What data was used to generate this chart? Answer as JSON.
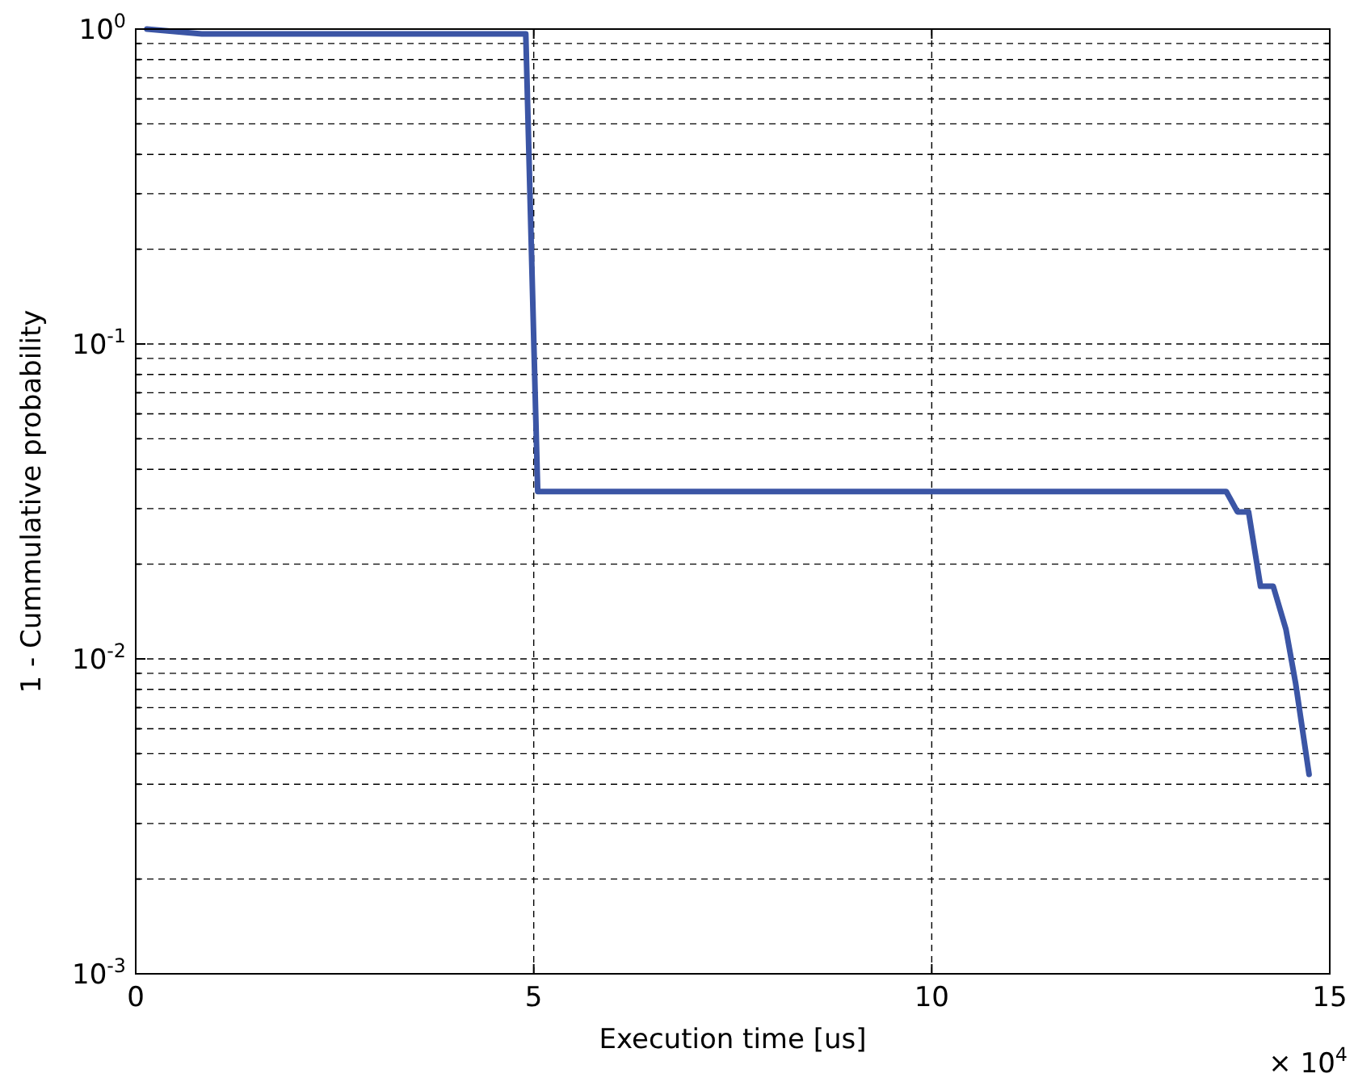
{
  "chart_data": {
    "type": "line",
    "xlabel": "Execution time [us]",
    "ylabel": "1 - Cummulative probability",
    "annotations": [
      "× 10$^{4}$"
    ],
    "x": [
      0.14,
      0.83,
      4.9,
      5.05,
      13.7,
      13.84,
      13.98,
      14.13,
      14.29,
      14.45,
      14.57,
      14.74
    ],
    "series": [
      {
        "color": "#3b55a5",
        "values": [
          1.0,
          0.965,
          0.965,
          0.034,
          0.034,
          0.0293,
          0.0293,
          0.017,
          0.017,
          0.0124,
          0.0084,
          0.0043
        ]
      }
    ],
    "log": "y",
    "grid": true,
    "line_style": "solid",
    "marker": "none",
    "xlim": [
      0,
      15
    ],
    "xticks": [
      0,
      5,
      10,
      15
    ],
    "ylim": [
      0.001,
      1
    ],
    "yticks": [
      {
        "value": 0.001,
        "label": "10$^{-3}$"
      },
      {
        "value": 0.002,
        "label": null
      },
      {
        "value": 0.003,
        "label": null
      },
      {
        "value": 0.004,
        "label": null
      },
      {
        "value": 0.005,
        "label": null
      },
      {
        "value": 0.006,
        "label": null
      },
      {
        "value": 0.007,
        "label": null
      },
      {
        "value": 0.008,
        "label": null
      },
      {
        "value": 0.009,
        "label": null
      },
      {
        "value": 0.01,
        "label": "10$^{-2}$"
      },
      {
        "value": 0.02,
        "label": null
      },
      {
        "value": 0.03,
        "label": null
      },
      {
        "value": 0.04,
        "label": null
      },
      {
        "value": 0.05,
        "label": null
      },
      {
        "value": 0.06,
        "label": null
      },
      {
        "value": 0.07,
        "label": null
      },
      {
        "value": 0.08,
        "label": null
      },
      {
        "value": 0.09,
        "label": null
      },
      {
        "value": 0.1,
        "label": "10$^{-1}$"
      },
      {
        "value": 0.2,
        "label": null
      },
      {
        "value": 0.3,
        "label": null
      },
      {
        "value": 0.4,
        "label": null
      },
      {
        "value": 0.5,
        "label": null
      },
      {
        "value": 0.6,
        "label": null
      },
      {
        "value": 0.7,
        "label": null
      },
      {
        "value": 0.8,
        "label": null
      },
      {
        "value": 0.9,
        "label": null
      },
      {
        "value": 1,
        "label": "10$^{0}$"
      }
    ]
  }
}
